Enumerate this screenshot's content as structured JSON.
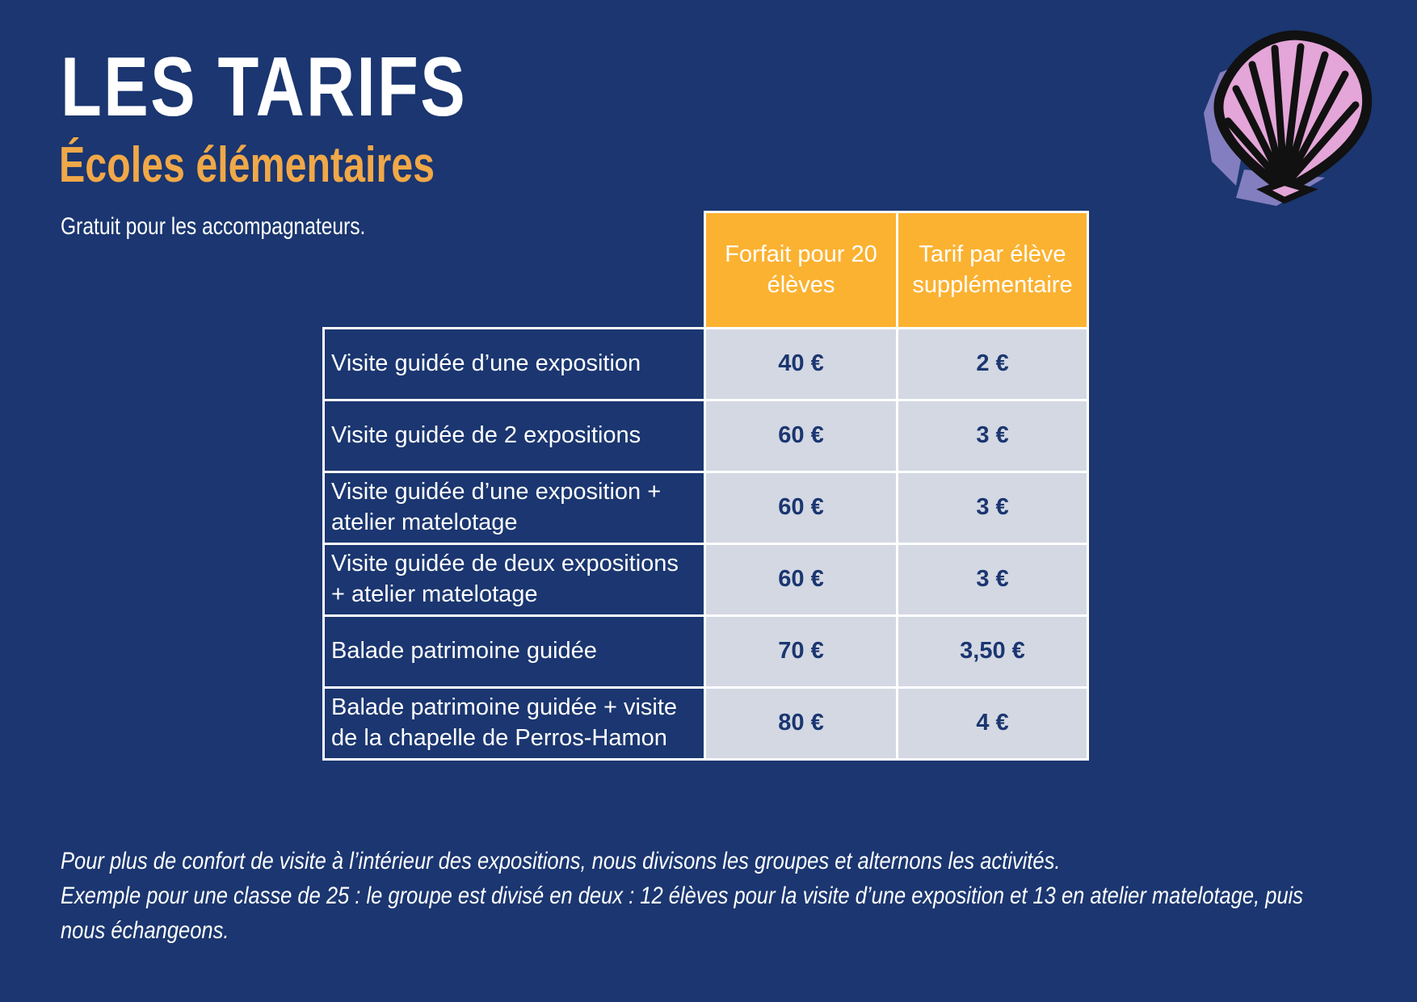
{
  "header": {
    "title": "LES TARIFS",
    "subtitle": "Écoles élémentaires",
    "note": "Gratuit pour les accompagnateurs."
  },
  "table": {
    "columns": [
      "Forfait pour 20 élèves",
      "Tarif par élève supplémentaire"
    ],
    "rows": [
      [
        "Visite guidée d’une exposition",
        "40 €",
        "2 €"
      ],
      [
        "Visite guidée de 2 expositions",
        "60 €",
        "3 €"
      ],
      [
        "Visite guidée d’une exposition + atelier matelotage",
        "60 €",
        "3 €"
      ],
      [
        "Visite guidée de deux expositions + atelier matelotage",
        "60 €",
        "3 €"
      ],
      [
        "Balade patrimoine guidée",
        "70 €",
        "3,50 €"
      ],
      [
        "Balade patrimoine guidée + visite de la chapelle de Perros-Hamon",
        "80 €",
        "4 €"
      ]
    ]
  },
  "footer": {
    "lines": [
      "Pour plus de confort de visite à l’intérieur des expositions, nous divisons les groupes et alternons les activités.",
      "Exemple pour une classe de 25 : le groupe est divisé en deux : 12 élèves pour la visite d’une exposition et 13 en atelier matelotage, puis nous échangeons."
    ]
  }
}
